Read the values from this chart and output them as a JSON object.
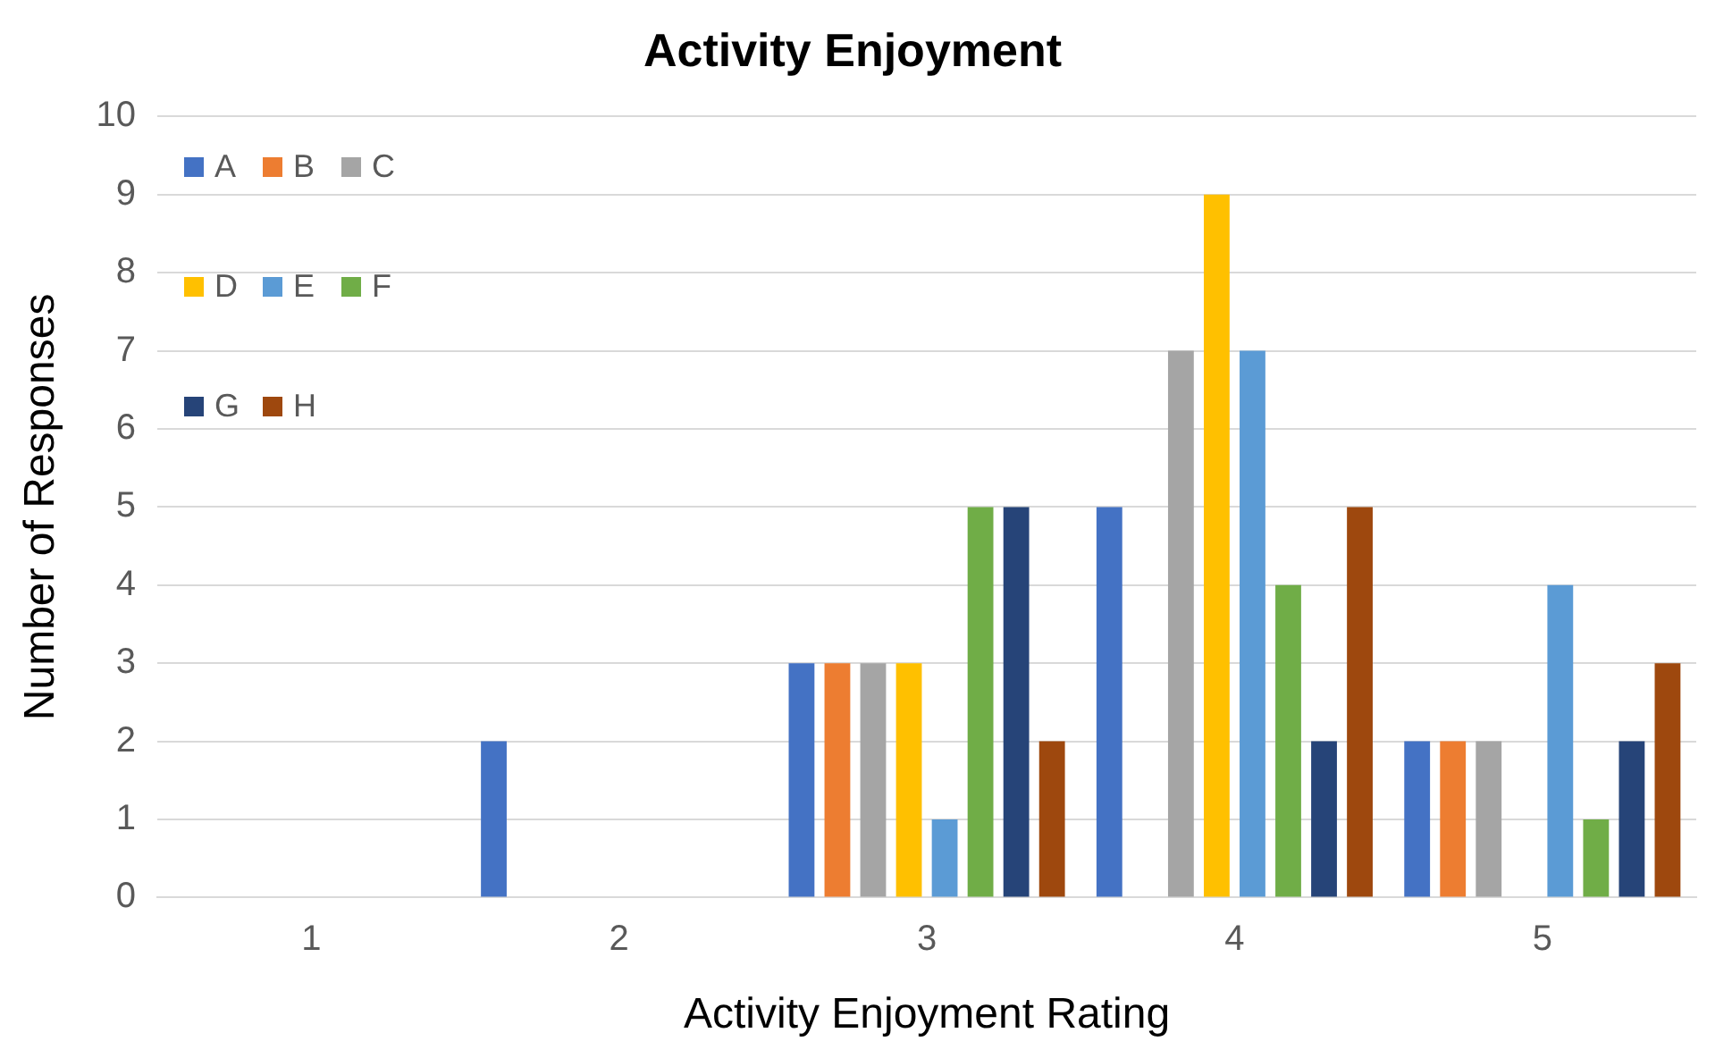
{
  "chart_data": {
    "type": "bar",
    "title": "Activity Enjoyment",
    "xlabel": "Activity Enjoyment Rating",
    "ylabel": "Number of Responses",
    "categories": [
      "1",
      "2",
      "3",
      "4",
      "5"
    ],
    "ylim": [
      0,
      10
    ],
    "yticks": [
      0,
      1,
      2,
      3,
      4,
      5,
      6,
      7,
      8,
      9,
      10
    ],
    "grid": "y",
    "legend": "top left",
    "series": [
      {
        "name": "A",
        "color": "#4472c4",
        "values": [
          0,
          2,
          3,
          5,
          2
        ]
      },
      {
        "name": "B",
        "color": "#ed7d31",
        "values": [
          0,
          0,
          3,
          0,
          2
        ]
      },
      {
        "name": "C",
        "color": "#a5a5a5",
        "values": [
          0,
          0,
          3,
          7,
          2
        ]
      },
      {
        "name": "D",
        "color": "#ffc000",
        "values": [
          0,
          0,
          3,
          9,
          0
        ]
      },
      {
        "name": "E",
        "color": "#5b9bd5",
        "values": [
          0,
          0,
          1,
          7,
          4
        ]
      },
      {
        "name": "F",
        "color": "#70ad47",
        "values": [
          0,
          0,
          5,
          4,
          1
        ]
      },
      {
        "name": "G",
        "color": "#264478",
        "values": [
          0,
          0,
          5,
          2,
          2
        ]
      },
      {
        "name": "H",
        "color": "#9e480e",
        "values": [
          0,
          0,
          2,
          5,
          3
        ]
      }
    ]
  }
}
